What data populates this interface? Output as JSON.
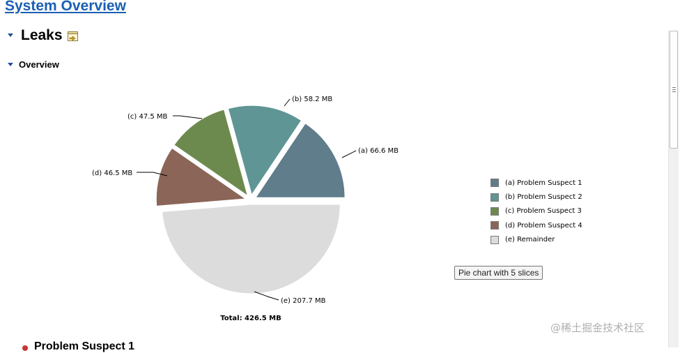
{
  "page": {
    "title_link": "System Overview"
  },
  "leaks_section": {
    "title": "Leaks"
  },
  "overview_section": {
    "title": "Overview"
  },
  "chart_data": {
    "type": "pie",
    "series": [
      {
        "key": "(a)",
        "name": "Problem Suspect 1",
        "value": 66.6,
        "value_label": "66.6 MB",
        "color": "#607d8b"
      },
      {
        "key": "(b)",
        "name": "Problem Suspect 2",
        "value": 58.2,
        "value_label": "58.2 MB",
        "color": "#5f9595"
      },
      {
        "key": "(c)",
        "name": "Problem Suspect 3",
        "value": 47.5,
        "value_label": "47.5 MB",
        "color": "#6d8a4e"
      },
      {
        "key": "(d)",
        "name": "Problem Suspect 4",
        "value": 46.5,
        "value_label": "46.5 MB",
        "color": "#8b6558"
      },
      {
        "key": "(e)",
        "name": "Remainder",
        "value": 207.7,
        "value_label": "207.7 MB",
        "color": "#dcdcdc"
      }
    ],
    "total_label": "Total: 426.5 MB",
    "legend_position": "right"
  },
  "tooltip": {
    "text": "Pie chart with 5 slices"
  },
  "next_section": {
    "title": "Problem Suspect 1"
  },
  "watermark": {
    "text": "@稀土掘金技术社区"
  }
}
